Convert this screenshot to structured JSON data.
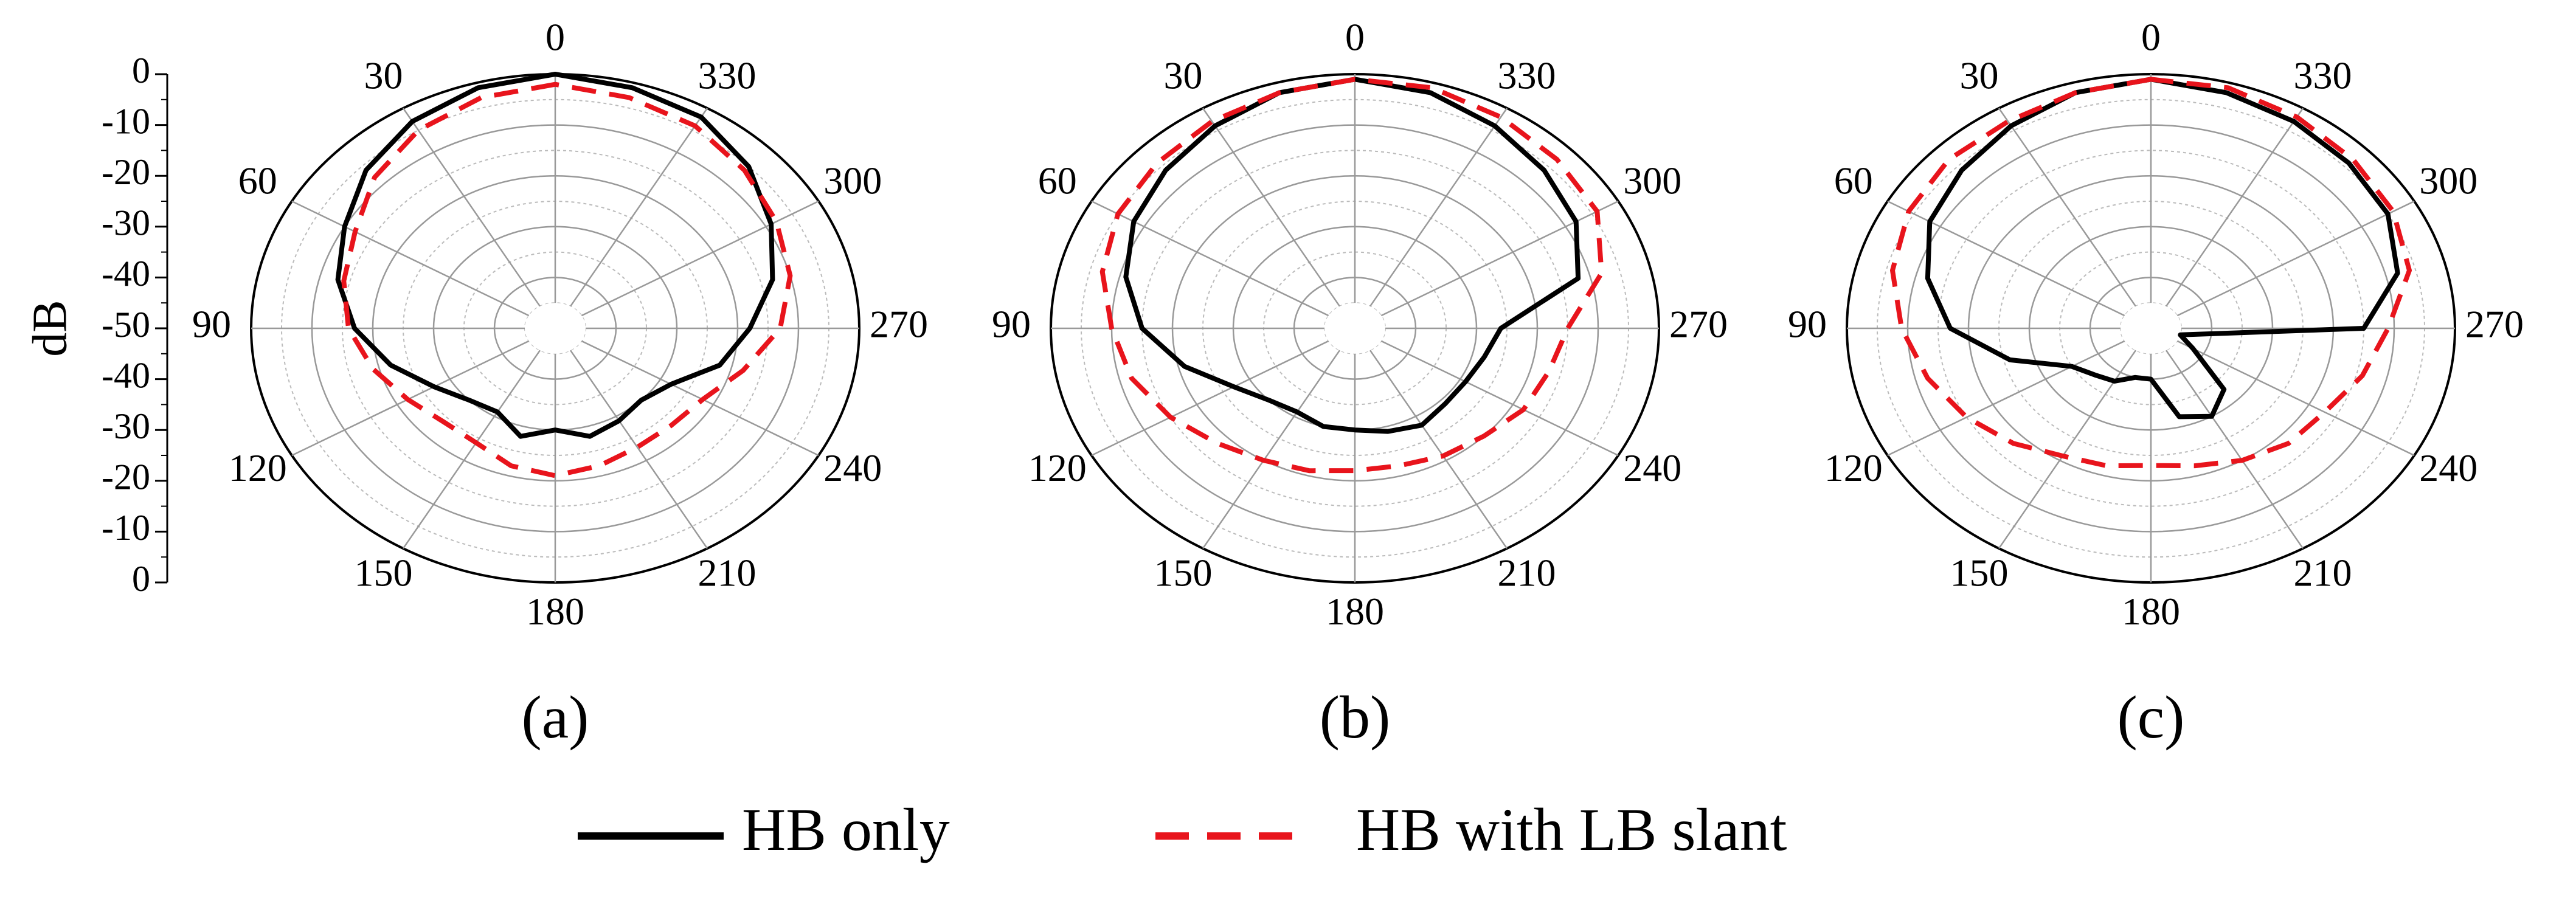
{
  "chart_data": [
    {
      "type": "polar",
      "label": "(a)",
      "rlabel": "dB",
      "rlim": [
        -50,
        0
      ],
      "rticks": [
        -50,
        -40,
        -30,
        -20,
        -10,
        0
      ],
      "thetaticks": [
        0,
        30,
        60,
        90,
        120,
        150,
        180,
        210,
        240,
        270,
        300,
        330
      ],
      "theta": [
        0,
        15,
        30,
        45,
        60,
        75,
        90,
        105,
        120,
        135,
        150,
        165,
        180,
        195,
        210,
        225,
        240,
        255,
        270,
        285,
        300,
        315,
        330,
        345
      ],
      "series": [
        {
          "name": "HB only",
          "color": "#000000",
          "values": [
            0,
            -1,
            -3,
            -6,
            -10,
            -13,
            -17,
            -22,
            -27,
            -30,
            -31,
            -28,
            -30,
            -28,
            -29,
            -30,
            -28,
            -22,
            -18,
            -13,
            -9,
            -5,
            -2,
            -1
          ]
        },
        {
          "name": "HB with LB slant",
          "color": "#e8141c",
          "dash": true,
          "values": [
            -2,
            -3,
            -5,
            -8,
            -12,
            -14,
            -16,
            -19,
            -22,
            -24,
            -24,
            -22,
            -21,
            -22,
            -23,
            -23,
            -22,
            -18,
            -13,
            -10,
            -8,
            -6,
            -4,
            -3
          ]
        }
      ]
    },
    {
      "type": "polar",
      "label": "(b)",
      "rlim": [
        -50,
        0
      ],
      "thetaticks": [
        0,
        30,
        60,
        90,
        120,
        150,
        180,
        210,
        240,
        270,
        300,
        330
      ],
      "theta": [
        0,
        15,
        30,
        45,
        60,
        75,
        90,
        105,
        120,
        135,
        150,
        165,
        180,
        195,
        210,
        225,
        240,
        255,
        270,
        285,
        300,
        315,
        330,
        345
      ],
      "series": [
        {
          "color": "#000000",
          "values": [
            -1,
            -2,
            -4,
            -6,
            -8,
            -11,
            -15,
            -21,
            -27,
            -30,
            -31,
            -30,
            -30,
            -29,
            -28,
            -29,
            -29,
            -28,
            -26,
            -12,
            -8,
            -6,
            -4,
            -2
          ]
        },
        {
          "color": "#e8141c",
          "dash": true,
          "values": [
            -1,
            -2,
            -3,
            -4,
            -5,
            -7,
            -10,
            -12,
            -15,
            -18,
            -20,
            -21,
            -22,
            -22,
            -21,
            -20,
            -18,
            -17,
            -15,
            -8,
            -4,
            -3,
            -2,
            -1
          ]
        }
      ]
    },
    {
      "type": "polar",
      "label": "(c)",
      "rlim": [
        -50,
        0
      ],
      "thetaticks": [
        0,
        30,
        60,
        90,
        120,
        150,
        180,
        210,
        240,
        270,
        300,
        330
      ],
      "theta": [
        0,
        15,
        30,
        45,
        60,
        75,
        90,
        105,
        120,
        135,
        150,
        165,
        180,
        195,
        210,
        225,
        240,
        255,
        270,
        285,
        300,
        315,
        330,
        345
      ],
      "series": [
        {
          "color": "#000000",
          "values": [
            -1,
            -2,
            -4,
            -6,
            -8,
            -12,
            -17,
            -26,
            -35,
            -37,
            -38,
            -40,
            -40,
            -32,
            -30,
            -33,
            -42,
            -45,
            -15,
            -8,
            -5,
            -4,
            -3,
            -2
          ]
        },
        {
          "color": "#e8141c",
          "dash": true,
          "values": [
            -1,
            -2,
            -3,
            -3,
            -4,
            -6,
            -9,
            -12,
            -15,
            -18,
            -21,
            -22,
            -23,
            -22,
            -20,
            -18,
            -17,
            -14,
            -11,
            -6,
            -4,
            -3,
            -2,
            -1
          ]
        }
      ]
    }
  ]
}
